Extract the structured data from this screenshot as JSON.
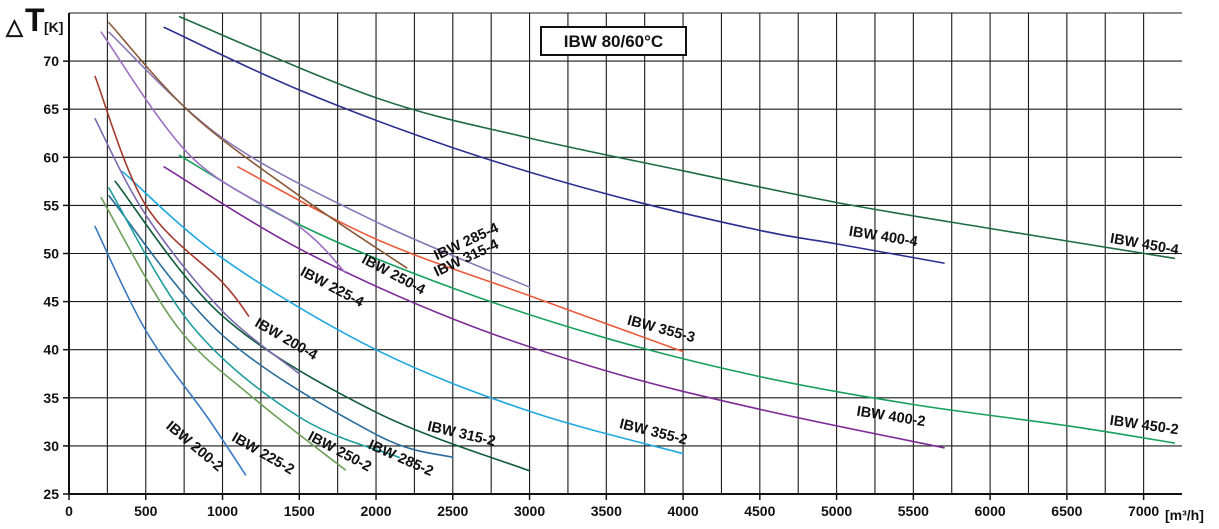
{
  "chart_data": {
    "type": "line",
    "title": "IBW 80/60°C",
    "ylabel_symbol": "△",
    "ylabel_main": "T",
    "ylabel_unit": "[K]",
    "xlabel": "[m³/h]",
    "xlim": [
      0,
      7250
    ],
    "ylim": [
      25,
      75
    ],
    "x_ticks": [
      0,
      500,
      1000,
      1500,
      2000,
      2500,
      3000,
      3500,
      4000,
      4500,
      5000,
      5500,
      6000,
      6500,
      7000
    ],
    "y_ticks": [
      25,
      30,
      35,
      40,
      45,
      50,
      55,
      60,
      65,
      70
    ],
    "x_tick_labels": [
      "0",
      "500",
      "1000",
      "1500",
      "2000",
      "2500",
      "3000",
      "3500",
      "4000",
      "4500",
      "5000",
      "5500",
      "6000",
      "6500",
      "7000"
    ],
    "y_tick_labels": [
      "25",
      "30",
      "35",
      "40",
      "45",
      "50",
      "55",
      "60",
      "65",
      "70"
    ],
    "grid": true,
    "series": [
      {
        "name": "IBW 450-4",
        "color": "#1e6b44",
        "points": [
          [
            720,
            74.6
          ],
          [
            2000,
            66.2
          ],
          [
            3000,
            62.0
          ],
          [
            4000,
            58.6
          ],
          [
            5000,
            55.3
          ],
          [
            6000,
            52.6
          ],
          [
            7200,
            49.5
          ]
        ]
      },
      {
        "name": "IBW 400-4",
        "color": "#2b2f8f",
        "points": [
          [
            620,
            73.5
          ],
          [
            1500,
            67.0
          ],
          [
            2500,
            61.0
          ],
          [
            3500,
            56.2
          ],
          [
            4500,
            52.4
          ],
          [
            5000,
            51.0
          ],
          [
            5700,
            49.0
          ]
        ]
      },
      {
        "name": "IBW 450-2",
        "color": "#16a05a",
        "points": [
          [
            720,
            60.2
          ],
          [
            1500,
            53.0
          ],
          [
            2500,
            46.4
          ],
          [
            3500,
            41.2
          ],
          [
            4500,
            37.2
          ],
          [
            5500,
            34.3
          ],
          [
            6500,
            32.1
          ],
          [
            7200,
            30.3
          ]
        ]
      },
      {
        "name": "IBW 400-2",
        "color": "#7d2b96",
        "points": [
          [
            620,
            59.0
          ],
          [
            1500,
            50.5
          ],
          [
            2500,
            43.2
          ],
          [
            3500,
            37.8
          ],
          [
            4500,
            33.8
          ],
          [
            5700,
            29.8
          ]
        ]
      },
      {
        "name": "IBW 355-3",
        "color": "#ea5a3c",
        "points": [
          [
            1100,
            59.0
          ],
          [
            2000,
            51.5
          ],
          [
            3000,
            45.6
          ],
          [
            4000,
            39.8
          ]
        ]
      },
      {
        "name": "IBW 355-2",
        "color": "#1fa8e0",
        "points": [
          [
            350,
            58.5
          ],
          [
            1000,
            49.5
          ],
          [
            2000,
            40.0
          ],
          [
            3000,
            33.6
          ],
          [
            4000,
            29.2
          ]
        ]
      },
      {
        "name": "IBW 315-4",
        "color": "#8a78b8",
        "points": [
          [
            260,
            73.0
          ],
          [
            1000,
            62.0
          ],
          [
            2000,
            53.3
          ],
          [
            3000,
            46.5
          ]
        ]
      },
      {
        "name": "IBW 285-4",
        "color": "#8a5a3a",
        "points": [
          [
            260,
            74.0
          ],
          [
            800,
            64.5
          ],
          [
            1500,
            56.0
          ],
          [
            2200,
            48.5
          ]
        ]
      },
      {
        "name": "IBW 315-2",
        "color": "#0f5c3a",
        "points": [
          [
            300,
            57.5
          ],
          [
            1000,
            43.5
          ],
          [
            2000,
            33.5
          ],
          [
            3000,
            27.4
          ]
        ]
      },
      {
        "name": "IBW 285-2",
        "color": "#2a6b9a",
        "points": [
          [
            260,
            56.0
          ],
          [
            1000,
            41.5
          ],
          [
            2000,
            31.2
          ],
          [
            2500,
            28.8
          ]
        ]
      },
      {
        "name": "IBW 250-4",
        "color": "#9c6fc4",
        "points": [
          [
            210,
            73.0
          ],
          [
            800,
            60.0
          ],
          [
            1500,
            52.8
          ],
          [
            1800,
            48.0
          ]
        ]
      },
      {
        "name": "IBW 225-4",
        "color": "#a33a2c",
        "points": [
          [
            170,
            68.4
          ],
          [
            500,
            55.0
          ],
          [
            1000,
            47.0
          ],
          [
            1170,
            43.5
          ]
        ]
      },
      {
        "name": "IBW 250-2",
        "color": "#1e9ea0",
        "points": [
          [
            260,
            56.8
          ],
          [
            800,
            42.5
          ],
          [
            1500,
            33.0
          ],
          [
            2150,
            28.8
          ]
        ]
      },
      {
        "name": "IBW 225-2",
        "color": "#6ea05a",
        "points": [
          [
            210,
            55.8
          ],
          [
            700,
            42.5
          ],
          [
            1200,
            35.0
          ],
          [
            1800,
            27.5
          ]
        ]
      },
      {
        "name": "IBW 200-2",
        "color": "#3a7ac0",
        "points": [
          [
            170,
            52.8
          ],
          [
            500,
            42.0
          ],
          [
            900,
            33.0
          ],
          [
            1150,
            27.0
          ]
        ]
      },
      {
        "name": "IBW 200-4",
        "color": "#7a6ab0",
        "points": [
          [
            170,
            64.0
          ],
          [
            500,
            54.0
          ],
          [
            1000,
            44.0
          ],
          [
            1500,
            37.5
          ]
        ]
      }
    ],
    "annotations": [
      {
        "text": "IBW 450-4",
        "x": 7000,
        "y": 50.5,
        "rotate": 10
      },
      {
        "text": "IBW 400-4",
        "x": 5300,
        "y": 51.3,
        "rotate": 9
      },
      {
        "text": "IBW 450-2",
        "x": 7000,
        "y": 31.7,
        "rotate": 8
      },
      {
        "text": "IBW 400-2",
        "x": 5350,
        "y": 32.6,
        "rotate": 9
      },
      {
        "text": "IBW 355-3",
        "x": 3850,
        "y": 41.7,
        "rotate": 15
      },
      {
        "text": "IBW 355-2",
        "x": 3800,
        "y": 31.0,
        "rotate": 14
      },
      {
        "text": "IBW 285-4",
        "x": 2600,
        "y": 50.8,
        "rotate": -25
      },
      {
        "text": "IBW 315-4",
        "x": 2600,
        "y": 49.1,
        "rotate": -25
      },
      {
        "text": "IBW 250-4",
        "x": 2100,
        "y": 47.4,
        "rotate": 28
      },
      {
        "text": "IBW 225-4",
        "x": 1700,
        "y": 46.1,
        "rotate": 28
      },
      {
        "text": "IBW 200-4",
        "x": 1400,
        "y": 40.7,
        "rotate": 30
      },
      {
        "text": "IBW 315-2",
        "x": 2550,
        "y": 30.8,
        "rotate": 13
      },
      {
        "text": "IBW 285-2",
        "x": 2150,
        "y": 28.3,
        "rotate": 24
      },
      {
        "text": "IBW 250-2",
        "x": 1750,
        "y": 29.0,
        "rotate": 28
      },
      {
        "text": "IBW 225-2",
        "x": 1250,
        "y": 28.8,
        "rotate": 30
      },
      {
        "text": "IBW 200-2",
        "x": 800,
        "y": 29.6,
        "rotate": 40
      }
    ]
  }
}
